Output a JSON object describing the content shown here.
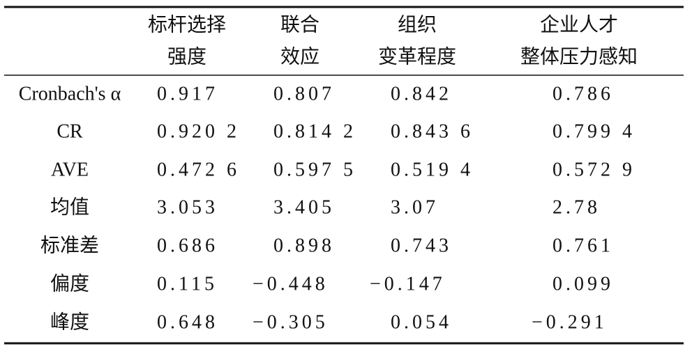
{
  "table": {
    "columns": [
      [
        "标杆选择",
        "强度"
      ],
      [
        "联合",
        "效应"
      ],
      [
        "组织",
        "变革程度"
      ],
      [
        "企业人才",
        "整体压力感知"
      ]
    ],
    "rows": [
      {
        "label": "Cronbach's α",
        "values": [
          "0.917",
          "0.807",
          "0.842",
          "0.786"
        ]
      },
      {
        "label": "CR",
        "values": [
          "0.920 2",
          "0.814 2",
          "0.843 6",
          "0.799 4"
        ]
      },
      {
        "label": "AVE",
        "values": [
          "0.472 6",
          "0.597 5",
          "0.519 4",
          "0.572 9"
        ]
      },
      {
        "label": "均值",
        "values": [
          "3.053",
          "3.405",
          "3.07",
          "2.78"
        ]
      },
      {
        "label": "标准差",
        "values": [
          "0.686",
          "0.898",
          "0.743",
          "0.761"
        ]
      },
      {
        "label": "偏度",
        "values": [
          "0.115",
          "−0.448",
          "−0.147",
          "0.099"
        ]
      },
      {
        "label": "峰度",
        "values": [
          "0.648",
          "−0.305",
          "0.054",
          "−0.291"
        ]
      }
    ]
  }
}
